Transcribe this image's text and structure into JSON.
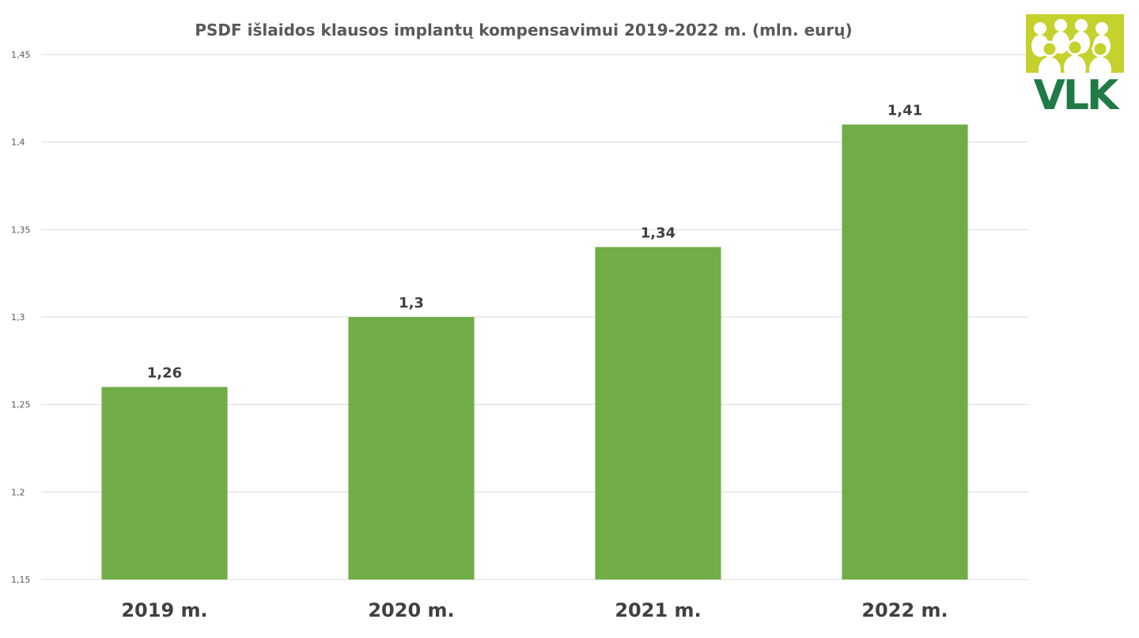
{
  "colors": {
    "bar": "#70ad47",
    "logo_green": "#1f7a45",
    "logo_lime": "#c5d12c"
  },
  "logo": {
    "text": "VLK",
    "icon": "people-group-icon"
  },
  "chart_data": {
    "type": "bar",
    "title": "PSDF išlaidos klausos implantų kompensavimui 2019-2022 m. (mln. eurų)",
    "categories": [
      "2019 m.",
      "2020 m.",
      "2021 m.",
      "2022 m."
    ],
    "values": [
      1.26,
      1.3,
      1.34,
      1.41
    ],
    "value_labels": [
      "1,26",
      "1,3",
      "1,34",
      "1,41"
    ],
    "ylim": [
      1.15,
      1.45
    ],
    "yticks": [
      {
        "value": 1.15,
        "label": "1,15"
      },
      {
        "value": 1.2,
        "label": "1,2"
      },
      {
        "value": 1.25,
        "label": "1,25"
      },
      {
        "value": 1.3,
        "label": "1,3"
      },
      {
        "value": 1.35,
        "label": "1,35"
      },
      {
        "value": 1.4,
        "label": "1,4"
      },
      {
        "value": 1.45,
        "label": "1,45"
      }
    ],
    "xlabel": "",
    "ylabel": "",
    "grid": true,
    "legend": "none"
  }
}
